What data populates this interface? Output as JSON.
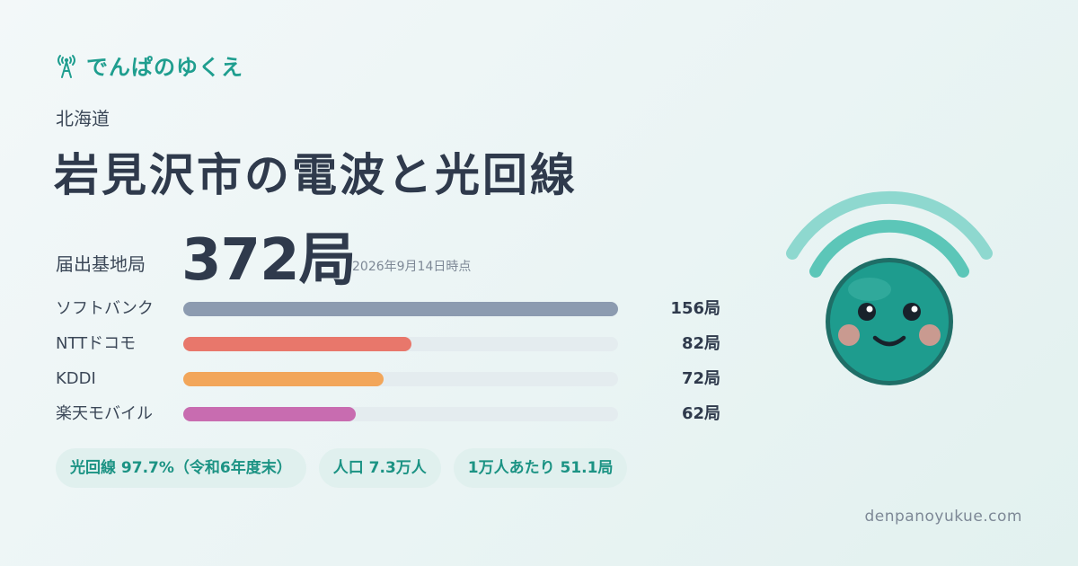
{
  "brand": {
    "name": "でんぱのゆくえ",
    "icon": "antenna-icon",
    "color": "#1f9e8f"
  },
  "prefecture": "北海道",
  "title": "岩見沢市の電波と光回線",
  "total": {
    "label": "届出基地局",
    "value": "372局",
    "date": "2026年9月14日時点"
  },
  "carriers": [
    {
      "name": "ソフトバンク",
      "count": "156局",
      "value": 156,
      "color": "#8c9bb0"
    },
    {
      "name": "NTTドコモ",
      "count": "82局",
      "value": 82,
      "color": "#e8776b"
    },
    {
      "name": "KDDI",
      "count": "72局",
      "value": 72,
      "color": "#f2a65a"
    },
    {
      "name": "楽天モバイル",
      "count": "62局",
      "value": 62,
      "color": "#c86cb0"
    }
  ],
  "pills": [
    "光回線 97.7%（令和6年度末）",
    "人口 7.3万人",
    "1万人あたり 51.1局"
  ],
  "domain": "denpanoyukue.com",
  "mascot": {
    "icon": "smiling-signal-mascot-icon",
    "color": "#1f9e8f"
  }
}
